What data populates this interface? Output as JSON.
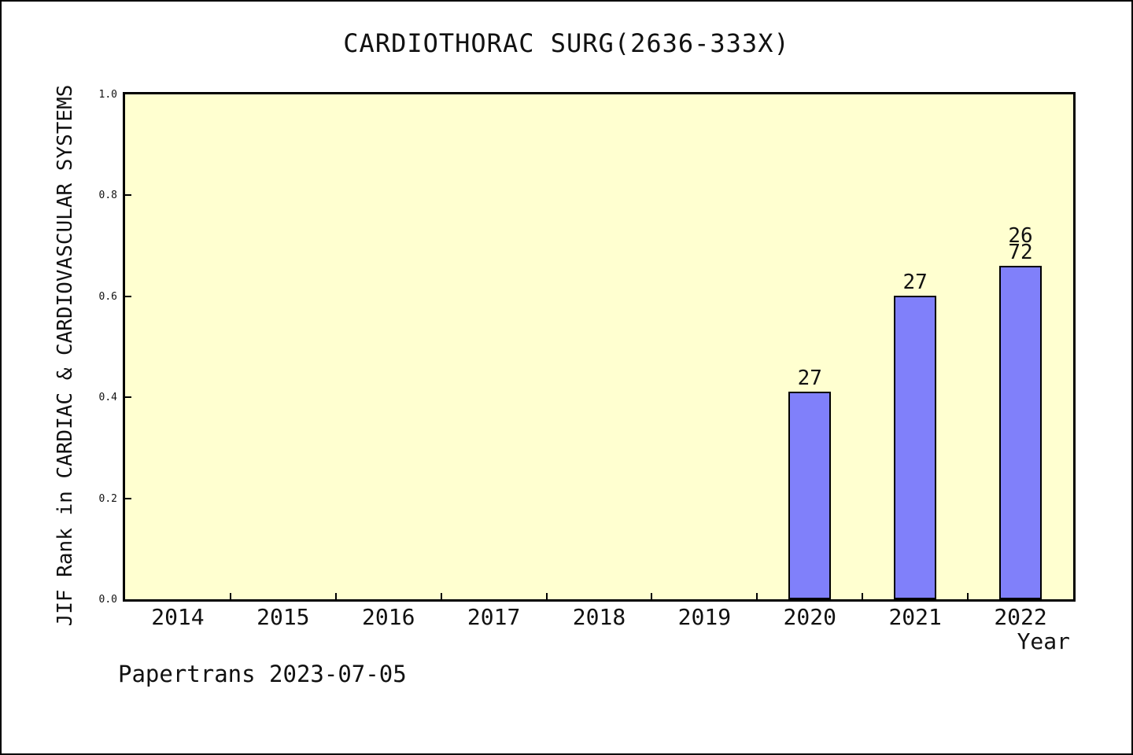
{
  "chart_data": {
    "type": "bar",
    "title": "CARDIOTHORAC SURG(2636-333X)",
    "xlabel": "Year",
    "ylabel": "JIF Rank in CARDIAC & CARDIOVASCULAR SYSTEMS",
    "categories": [
      "2014",
      "2015",
      "2016",
      "2017",
      "2018",
      "2019",
      "2020",
      "2021",
      "2022"
    ],
    "values": [
      null,
      null,
      null,
      null,
      null,
      null,
      0.412,
      0.602,
      0.661
    ],
    "bar_labels": [
      null,
      null,
      null,
      null,
      null,
      null,
      "27",
      "27",
      "26\n72"
    ],
    "ylim": [
      0.0,
      1.0
    ],
    "yticks": [
      0.0,
      0.2,
      0.4,
      0.6,
      0.8,
      1.0
    ],
    "ytick_labels": [
      "0.0",
      "0.2",
      "0.4",
      "0.6",
      "0.8",
      "1.0"
    ],
    "grid": false,
    "legend": null,
    "colors": {
      "bar_fill": "#8080FA",
      "bar_border": "#000000",
      "plot_background": "#FFFFD0",
      "axis": "#000000",
      "text": "#111111",
      "page_background": "#FFFFFF"
    }
  },
  "footer": {
    "note": "Papertrans 2023-07-05"
  }
}
